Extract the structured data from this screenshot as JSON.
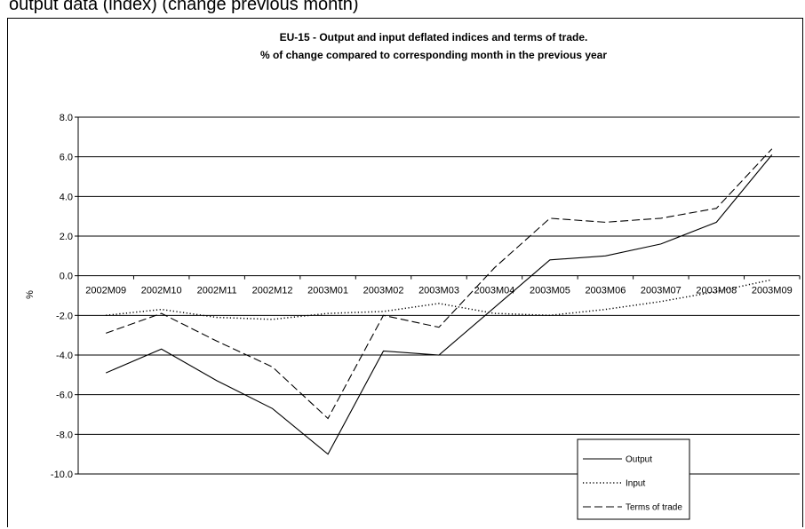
{
  "caption": "output data (index) (change previous month)",
  "chart_data": {
    "type": "line",
    "title": "EU-15 - Output and input deflated indices and terms of trade.",
    "subtitle": "% of change compared to corresponding month in the previous year",
    "xlabel": "",
    "ylabel": "%",
    "ylim": [
      -10,
      8
    ],
    "yticks": [
      "8.0",
      "6.0",
      "4.0",
      "2.0",
      "0.0",
      "-2.0",
      "-4.0",
      "-6.0",
      "-8.0",
      "-10.0"
    ],
    "categories": [
      "2002M09",
      "2002M10",
      "2002M11",
      "2002M12",
      "2003M01",
      "2003M02",
      "2003M03",
      "2003M04",
      "2003M05",
      "2003M06",
      "2003M07",
      "2003M08",
      "2003M09"
    ],
    "series": [
      {
        "name": "Output",
        "values": [
          -4.9,
          -3.7,
          -5.3,
          -6.7,
          -9.0,
          -3.8,
          -4.0,
          -1.6,
          0.8,
          1.0,
          1.6,
          2.7,
          6.1
        ],
        "color": "#000000",
        "dash": "solid"
      },
      {
        "name": "Input",
        "values": [
          -2.0,
          -1.7,
          -2.1,
          -2.2,
          -1.9,
          -1.8,
          -1.4,
          -1.9,
          -2.0,
          -1.7,
          -1.3,
          -0.8,
          -0.2
        ],
        "color": "#000000",
        "dash": "dotted"
      },
      {
        "name": "Terms of trade",
        "values": [
          -2.9,
          -1.9,
          -3.3,
          -4.6,
          -7.2,
          -2.0,
          -2.6,
          0.4,
          2.9,
          2.7,
          2.9,
          3.4,
          6.4
        ],
        "color": "#000000",
        "dash": "dashed"
      }
    ],
    "grid": true,
    "legend_position": "bottom-right"
  }
}
